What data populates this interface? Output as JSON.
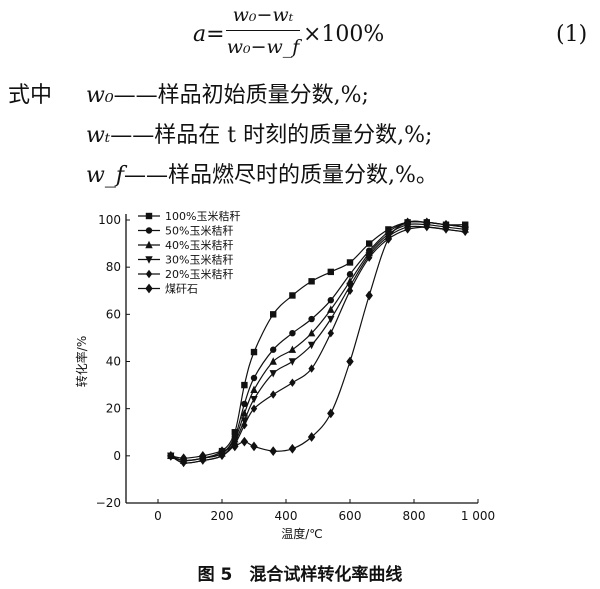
{
  "formula": {
    "lhs": "a=",
    "numerator": "w₀−wₜ",
    "denominator": "w₀−w_f",
    "rhs": "×100%",
    "eq_number": "(1)"
  },
  "definitions": {
    "intro": "式中",
    "items": [
      {
        "symbol": "w₀",
        "text": "——样品初始质量分数,%;"
      },
      {
        "symbol": "wₜ",
        "text": "——样品在 t 时刻的质量分数,%;"
      },
      {
        "symbol": "w_f",
        "text": "——样品燃尽时的质量分数,%。"
      }
    ]
  },
  "caption": "图 5　混合试样转化率曲线",
  "chart_data": {
    "type": "line",
    "title": "",
    "xlabel": "温度/℃",
    "ylabel": "转化率/%",
    "xlim": [
      -100,
      1000
    ],
    "ylim": [
      -20,
      100
    ],
    "xticks": [
      {
        "v": 0,
        "label": "0"
      },
      {
        "v": 200,
        "label": "200"
      },
      {
        "v": 400,
        "label": "400"
      },
      {
        "v": 600,
        "label": "600"
      },
      {
        "v": 800,
        "label": "800"
      },
      {
        "v": 1000,
        "label": "1 000"
      }
    ],
    "yticks": [
      {
        "v": -20,
        "label": "−20"
      },
      {
        "v": 0,
        "label": "0"
      },
      {
        "v": 20,
        "label": "20"
      },
      {
        "v": 40,
        "label": "40"
      },
      {
        "v": 60,
        "label": "60"
      },
      {
        "v": 80,
        "label": "80"
      },
      {
        "v": 100,
        "label": "100"
      }
    ],
    "grid": false,
    "legend_position": "top-left",
    "series": [
      {
        "name": "100%玉米秸秆",
        "marker": "square",
        "x": [
          40,
          80,
          140,
          200,
          240,
          270,
          300,
          360,
          420,
          480,
          540,
          600,
          660,
          720,
          780,
          840,
          900,
          960
        ],
        "y": [
          0,
          -2,
          -1,
          2,
          10,
          30,
          44,
          60,
          68,
          74,
          78,
          82,
          90,
          96,
          99,
          99,
          98,
          98
        ]
      },
      {
        "name": "50%玉米秸秆",
        "marker": "circle",
        "x": [
          40,
          80,
          140,
          200,
          240,
          270,
          300,
          360,
          420,
          480,
          540,
          600,
          660,
          720,
          780,
          840,
          900,
          960
        ],
        "y": [
          0,
          -2,
          -1,
          1,
          8,
          22,
          33,
          45,
          52,
          58,
          66,
          77,
          87,
          95,
          99,
          99,
          98,
          97
        ]
      },
      {
        "name": "40%玉米秸秆",
        "marker": "triangle",
        "x": [
          40,
          80,
          140,
          200,
          240,
          270,
          300,
          360,
          420,
          480,
          540,
          600,
          660,
          720,
          780,
          840,
          900,
          960
        ],
        "y": [
          0,
          -2,
          -1,
          1,
          7,
          18,
          28,
          40,
          45,
          52,
          62,
          74,
          86,
          94,
          98,
          98,
          97,
          96
        ]
      },
      {
        "name": "30%玉米秸秆",
        "marker": "triangle-down",
        "x": [
          40,
          80,
          140,
          200,
          240,
          270,
          300,
          360,
          420,
          480,
          540,
          600,
          660,
          720,
          780,
          840,
          900,
          960
        ],
        "y": [
          0,
          -3,
          -2,
          0,
          6,
          15,
          24,
          35,
          40,
          47,
          58,
          72,
          85,
          93,
          97,
          97,
          96,
          95
        ]
      },
      {
        "name": "20%玉米秸秆",
        "marker": "diamond",
        "x": [
          40,
          80,
          140,
          200,
          240,
          270,
          300,
          360,
          420,
          480,
          540,
          600,
          660,
          720,
          780,
          840,
          900,
          960
        ],
        "y": [
          0,
          -3,
          -2,
          0,
          5,
          13,
          20,
          26,
          31,
          37,
          52,
          70,
          84,
          92,
          96,
          97,
          96,
          95
        ]
      },
      {
        "name": "煤矸石",
        "marker": "star",
        "x": [
          40,
          80,
          140,
          200,
          240,
          270,
          300,
          360,
          420,
          480,
          540,
          600,
          660,
          720,
          780,
          840,
          900,
          960
        ],
        "y": [
          0,
          -1,
          0,
          2,
          4,
          6,
          4,
          2,
          3,
          8,
          18,
          40,
          68,
          92,
          99,
          99,
          98,
          97
        ]
      }
    ]
  }
}
